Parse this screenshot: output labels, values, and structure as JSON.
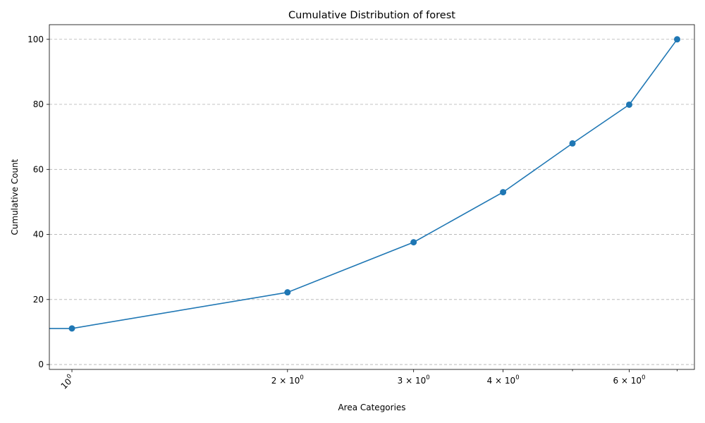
{
  "chart_data": {
    "type": "line",
    "title": "Cumulative Distribution of forest",
    "xlabel": "Area Categories",
    "ylabel": "Cumulative Count",
    "x_scale": "log",
    "xlim": [
      0.93,
      7.4
    ],
    "ylim": [
      -1.5,
      104.5
    ],
    "grid": "y-dashed",
    "x": [
      1,
      2,
      3,
      4,
      5,
      6,
      7
    ],
    "series": [
      {
        "values": [
          11.1,
          22.2,
          37.6,
          53.0,
          68.0,
          79.9,
          100
        ],
        "color": "#1f77b4",
        "marker": "circle"
      }
    ],
    "x_ticks": [
      {
        "value": 1,
        "base": "10",
        "exp": "0",
        "mult": ""
      },
      {
        "value": 2,
        "base": "10",
        "exp": "0",
        "mult": "2 × "
      },
      {
        "value": 3,
        "base": "10",
        "exp": "0",
        "mult": "3 × "
      },
      {
        "value": 4,
        "base": "10",
        "exp": "0",
        "mult": "4 × "
      },
      {
        "value": 6,
        "base": "10",
        "exp": "0",
        "mult": "6 × "
      }
    ],
    "x_minor_ticks": [
      5,
      7
    ],
    "y_ticks": [
      0,
      20,
      40,
      60,
      80,
      100
    ]
  }
}
